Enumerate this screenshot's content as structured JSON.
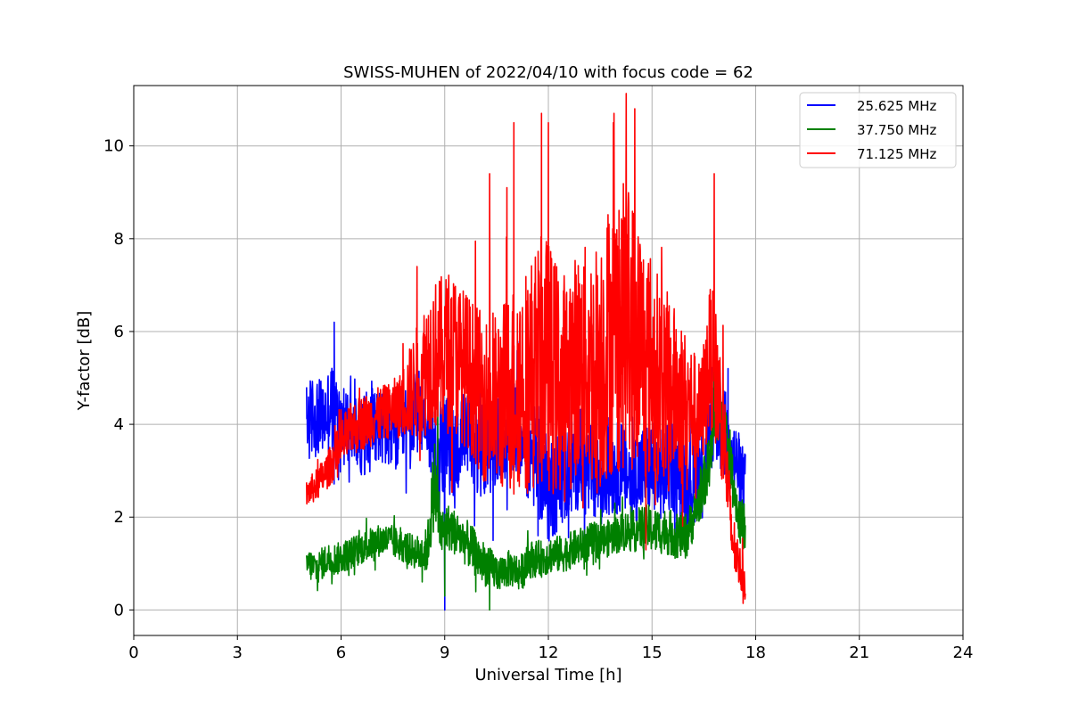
{
  "chart_data": {
    "type": "line",
    "title": "SWISS-MUHEN of 2022/04/10 with focus code = 62",
    "xlabel": "Universal Time [h]",
    "ylabel": "Y-factor [dB]",
    "xlim": [
      0,
      24
    ],
    "ylim": [
      -0.55,
      11.3
    ],
    "xticks": [
      0,
      3,
      6,
      9,
      12,
      15,
      18,
      21,
      24
    ],
    "yticks": [
      0,
      2,
      4,
      6,
      8,
      10
    ],
    "grid": true,
    "legend_position": "top-right",
    "series": [
      {
        "name": "25.625 MHz",
        "color": "#0000ff",
        "x": [
          5.0,
          5.2,
          5.5,
          5.7,
          6.0,
          6.3,
          6.6,
          6.9,
          7.2,
          7.5,
          7.8,
          8.1,
          8.4,
          8.7,
          9.0,
          9.3,
          9.6,
          9.9,
          10.2,
          10.5,
          10.8,
          11.1,
          11.4,
          11.7,
          12.0,
          12.3,
          12.6,
          12.9,
          13.2,
          13.5,
          13.8,
          14.1,
          14.4,
          14.7,
          15.0,
          15.3,
          15.6,
          15.9,
          16.2,
          16.5,
          16.8,
          17.1,
          17.4,
          17.7
        ],
        "y": [
          4.0,
          4.2,
          4.1,
          4.4,
          4.0,
          3.9,
          3.7,
          4.2,
          3.9,
          3.8,
          3.9,
          4.2,
          4.3,
          3.5,
          3.6,
          3.4,
          3.8,
          3.5,
          3.4,
          3.6,
          3.8,
          4.0,
          3.5,
          3.2,
          2.6,
          2.8,
          3.0,
          3.3,
          2.9,
          2.8,
          3.0,
          3.1,
          2.8,
          3.0,
          3.1,
          2.9,
          3.1,
          2.9,
          2.7,
          3.3,
          4.1,
          3.8,
          3.2,
          2.7
        ],
        "spread": [
          0.9,
          0.9,
          0.8,
          1.0,
          0.9,
          0.8,
          0.8,
          0.9,
          0.8,
          0.9,
          0.9,
          0.9,
          0.9,
          1.0,
          1.1,
          1.0,
          1.0,
          1.0,
          1.0,
          1.0,
          1.0,
          1.0,
          1.1,
          1.2,
          1.2,
          1.1,
          1.1,
          1.1,
          1.1,
          1.0,
          1.0,
          1.0,
          1.0,
          1.0,
          1.0,
          1.0,
          1.0,
          1.0,
          0.9,
          0.9,
          0.9,
          1.0,
          0.9,
          0.7
        ],
        "spikes": [
          [
            5.8,
            6.2
          ],
          [
            9.0,
            0.0
          ],
          [
            10.2,
            3.2
          ],
          [
            10.4,
            1.5
          ],
          [
            11.7,
            1.6
          ],
          [
            12.6,
            5.7
          ],
          [
            16.9,
            5.2
          ],
          [
            17.2,
            5.2
          ]
        ]
      },
      {
        "name": "37.750 MHz",
        "color": "#008000",
        "x": [
          5.0,
          5.3,
          5.6,
          5.9,
          6.2,
          6.5,
          6.8,
          7.1,
          7.4,
          7.7,
          8.0,
          8.3,
          8.5,
          8.7,
          8.9,
          9.1,
          9.4,
          9.7,
          10.0,
          10.3,
          10.6,
          10.9,
          11.2,
          11.5,
          11.8,
          12.1,
          12.4,
          12.7,
          13.0,
          13.3,
          13.6,
          13.9,
          14.2,
          14.5,
          14.8,
          15.1,
          15.4,
          15.7,
          16.0,
          16.3,
          16.6,
          16.9,
          17.2,
          17.5,
          17.7
        ],
        "y": [
          1.0,
          0.9,
          1.1,
          1.1,
          1.2,
          1.3,
          1.4,
          1.5,
          1.5,
          1.4,
          1.3,
          1.2,
          1.3,
          2.8,
          1.6,
          1.8,
          1.6,
          1.4,
          1.1,
          0.9,
          0.8,
          0.9,
          0.8,
          1.1,
          1.1,
          1.2,
          1.2,
          1.3,
          1.4,
          1.5,
          1.5,
          1.6,
          1.7,
          1.7,
          1.8,
          1.7,
          1.7,
          1.6,
          1.6,
          2.2,
          3.0,
          4.3,
          3.6,
          2.0,
          1.6
        ],
        "spread": [
          0.35,
          0.35,
          0.35,
          0.35,
          0.35,
          0.35,
          0.35,
          0.35,
          0.35,
          0.35,
          0.35,
          0.4,
          0.5,
          1.0,
          0.6,
          0.5,
          0.5,
          0.5,
          0.5,
          0.45,
          0.4,
          0.4,
          0.4,
          0.4,
          0.4,
          0.4,
          0.4,
          0.4,
          0.4,
          0.4,
          0.4,
          0.4,
          0.45,
          0.45,
          0.5,
          0.5,
          0.5,
          0.5,
          0.5,
          0.5,
          0.6,
          0.6,
          0.6,
          0.5,
          0.4
        ],
        "spikes": [
          [
            8.8,
            4.9
          ],
          [
            9.0,
            0.3
          ],
          [
            10.3,
            0.0
          ],
          [
            16.8,
            5.3
          ]
        ]
      },
      {
        "name": "71.125 MHz",
        "color": "#ff0000",
        "x": [
          5.0,
          5.3,
          5.6,
          5.9,
          6.2,
          6.5,
          6.8,
          7.1,
          7.4,
          7.7,
          8.0,
          8.3,
          8.6,
          8.9,
          9.2,
          9.5,
          9.8,
          10.1,
          10.4,
          10.7,
          11.0,
          11.3,
          11.6,
          11.9,
          12.2,
          12.5,
          12.8,
          13.1,
          13.4,
          13.7,
          14.0,
          14.3,
          14.6,
          14.9,
          15.2,
          15.5,
          15.8,
          16.1,
          16.4,
          16.7,
          16.9,
          17.1,
          17.3,
          17.5,
          17.7
        ],
        "y": [
          2.5,
          2.7,
          3.0,
          3.4,
          3.8,
          4.0,
          4.1,
          4.2,
          4.3,
          4.4,
          4.7,
          5.0,
          5.5,
          5.5,
          5.6,
          5.3,
          5.0,
          4.6,
          4.4,
          4.6,
          4.8,
          5.0,
          5.2,
          5.4,
          5.0,
          4.8,
          5.3,
          5.3,
          5.2,
          5.8,
          6.0,
          6.2,
          5.7,
          5.3,
          5.0,
          4.8,
          4.6,
          4.4,
          4.1,
          5.5,
          4.8,
          3.6,
          1.6,
          1.0,
          0.6
        ],
        "spread": [
          0.3,
          0.35,
          0.4,
          0.5,
          0.6,
          0.6,
          0.6,
          0.6,
          0.6,
          0.7,
          1.0,
          1.4,
          1.6,
          1.7,
          1.8,
          1.7,
          1.7,
          1.8,
          1.9,
          2.1,
          2.3,
          2.4,
          2.6,
          2.8,
          2.6,
          2.5,
          2.4,
          2.6,
          2.8,
          3.0,
          3.1,
          3.1,
          2.9,
          2.6,
          2.2,
          2.0,
          1.7,
          1.4,
          1.2,
          1.6,
          1.5,
          1.2,
          0.7,
          0.5,
          0.4
        ],
        "spikes": [
          [
            8.2,
            7.4
          ],
          [
            10.3,
            9.4
          ],
          [
            10.8,
            9.1
          ],
          [
            11.0,
            10.5
          ],
          [
            11.8,
            10.7
          ],
          [
            12.0,
            10.5
          ],
          [
            13.9,
            10.7
          ],
          [
            14.5,
            10.8
          ],
          [
            16.8,
            9.4
          ],
          [
            11.0,
            2.5
          ],
          [
            13.0,
            2.2
          ]
        ]
      }
    ]
  }
}
